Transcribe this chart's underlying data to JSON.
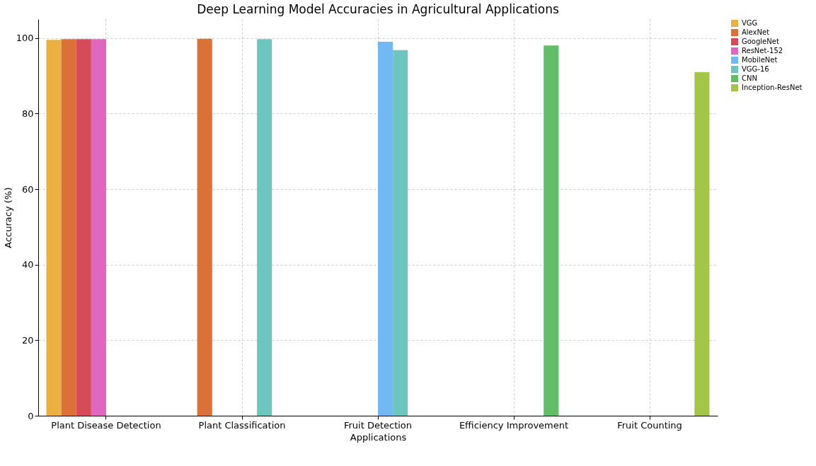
{
  "chart_data": {
    "type": "bar",
    "title": "Deep Learning Model Accuracies in Agricultural Applications",
    "xlabel": "Applications",
    "ylabel": "Accuracy (%)",
    "categories": [
      "Plant Disease Detection",
      "Plant Classification",
      "Fruit Detection",
      "Efficiency Improvement",
      "Fruit Counting"
    ],
    "series": [
      {
        "name": "VGG",
        "color": "#eab041",
        "values": [
          99.5,
          null,
          null,
          null,
          null
        ]
      },
      {
        "name": "AlexNet",
        "color": "#dc7138",
        "values": [
          99.7,
          99.8,
          null,
          null,
          null
        ]
      },
      {
        "name": "GoogleNet",
        "color": "#d64b5a",
        "values": [
          99.7,
          null,
          null,
          null,
          null
        ]
      },
      {
        "name": "ResNet-152",
        "color": "#e066c0",
        "values": [
          99.7,
          null,
          null,
          null,
          null
        ]
      },
      {
        "name": "MobileNet",
        "color": "#72b8f2",
        "values": [
          null,
          null,
          99,
          null,
          null
        ]
      },
      {
        "name": "VGG-16",
        "color": "#6cc6bf",
        "values": [
          null,
          99.7,
          96.8,
          null,
          null
        ]
      },
      {
        "name": "CNN",
        "color": "#62bd67",
        "values": [
          null,
          null,
          null,
          98,
          null
        ]
      },
      {
        "name": "Inception-ResNet",
        "color": "#a3c646",
        "values": [
          null,
          null,
          null,
          null,
          91
        ]
      }
    ],
    "ylim": [
      0,
      105
    ],
    "yticks": [
      0,
      20,
      40,
      60,
      80,
      100
    ],
    "grid": true,
    "legend": "right"
  }
}
